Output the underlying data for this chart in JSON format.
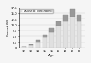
{
  "ages": [
    "12",
    "13",
    "14",
    "15",
    "16",
    "17",
    "18",
    "19",
    "20"
  ],
  "abuse": [
    0.5,
    1.1,
    2.5,
    4.5,
    7.0,
    9.5,
    11.5,
    13.5,
    11.5
  ],
  "dependence": [
    0.2,
    0.4,
    0.7,
    1.1,
    1.6,
    2.0,
    2.8,
    3.2,
    3.0
  ],
  "abuse_color": "#e0e0e0",
  "dependence_color": "#999999",
  "xlabel": "Age",
  "ylabel": "Percent (%)",
  "legend_abuse": "  Abuse",
  "legend_dependence": "  Dependence",
  "ylim": [
    0,
    17.5
  ],
  "yticks": [
    0,
    2.5,
    5.0,
    7.5,
    10.0,
    12.5,
    15.0,
    17.5
  ],
  "ytick_labels": [
    "0",
    "2.5",
    "5.0",
    "7.5",
    "10.0",
    "12.5",
    "15.0",
    "17.5"
  ],
  "background_color": "#f5f5f5",
  "bar_width": 0.65,
  "title": ""
}
